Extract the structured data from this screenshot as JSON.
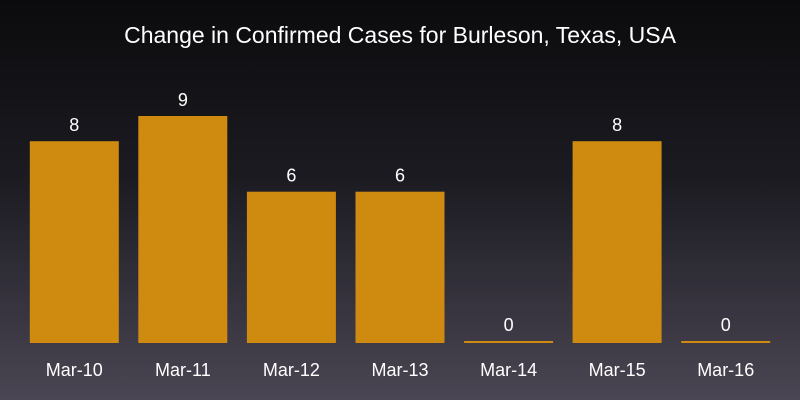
{
  "chart_data": {
    "type": "bar",
    "title": "Change in Confirmed Cases for Burleson, Texas, USA",
    "categories": [
      "Mar-10",
      "Mar-11",
      "Mar-12",
      "Mar-13",
      "Mar-14",
      "Mar-15",
      "Mar-16"
    ],
    "values": [
      8,
      9,
      6,
      6,
      0,
      8,
      0
    ],
    "data_labels": [
      "8",
      "9",
      "6",
      "6",
      "0",
      "8",
      "0"
    ],
    "xlabel": "",
    "ylabel": "",
    "ylim": [
      0,
      9
    ],
    "grid": false,
    "legend": "none",
    "colors": {
      "bar": "#cf8b0f",
      "text": "#ffffff"
    }
  }
}
